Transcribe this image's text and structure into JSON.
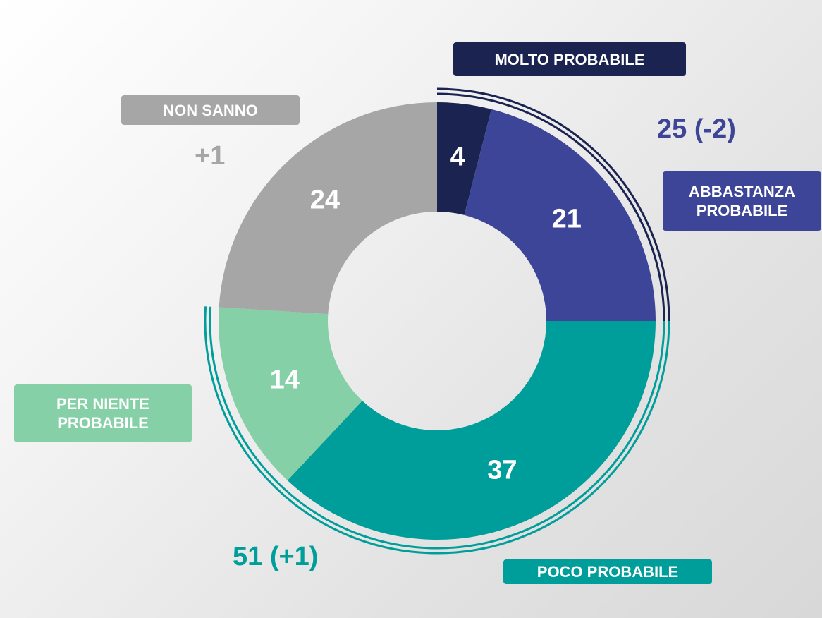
{
  "chart_data": {
    "type": "donut",
    "categories": [
      "MOLTO PROBABILE",
      "ABBASTANZA PROBABILE",
      "POCO PROBABILE",
      "PER NIENTE PROBABILE",
      "NON SANNO"
    ],
    "values": [
      4,
      21,
      37,
      14,
      24
    ],
    "colors": [
      "#1b2350",
      "#3c4598",
      "#009e9a",
      "#86d0a8",
      "#a6a6a6"
    ],
    "annotations": [
      "25 (-2)",
      "51 (+1)",
      "+1"
    ]
  }
}
